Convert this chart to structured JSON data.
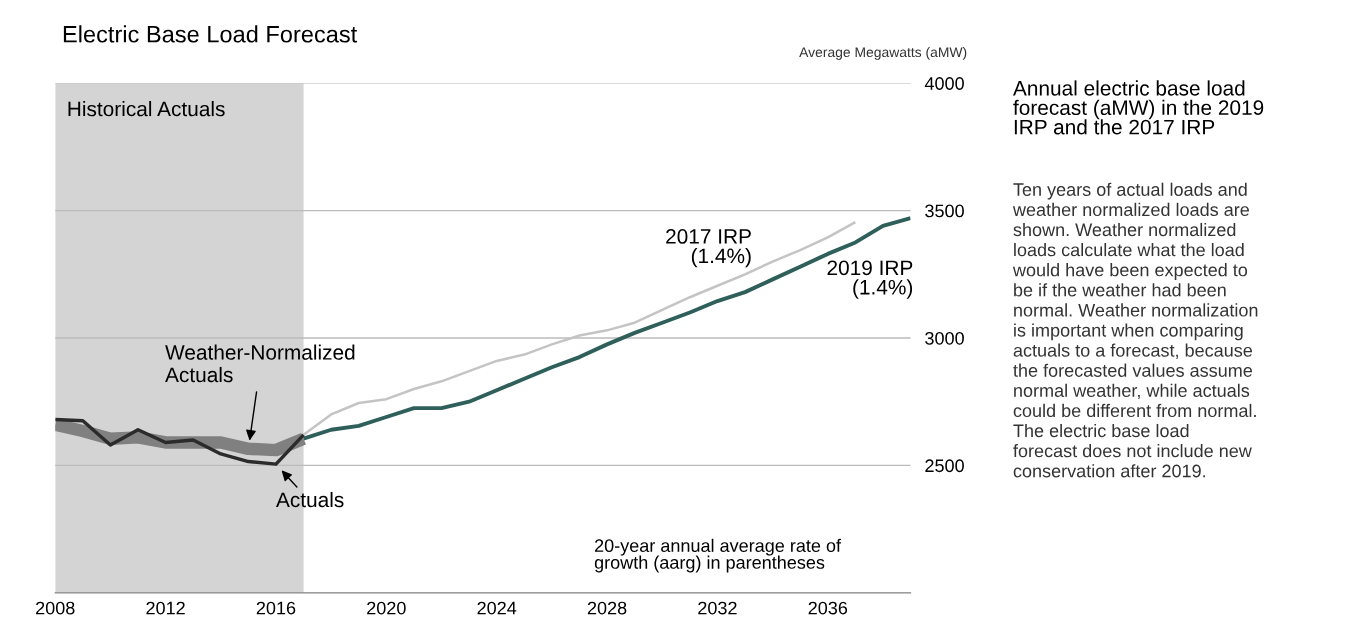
{
  "chart_data": {
    "type": "line",
    "title": "Electric Base Load Forecast",
    "subtitle": "Annual electric base load\nforecast (aMW) in the 2019\nIRP and the 2017 IRP",
    "ylabel": "Average Megawatts (aMW)",
    "annotations": [
      "Ten years of actual loads and\nweather normalized loads are\nshown. Weather normalized\nloads calculate what the load\nwould have been expected to\nbe if the weather had been\nnormal. Weather normalization\nis important when comparing\nactuals to a forecast, because\nthe forecasted values assume\nnormal weather, while actuals\ncould be different from normal.\nThe electric base load\nforecast does not include new\nconservation after 2019.",
      "20-year annual average rate of\ngrowth (aarg) in parentheses"
    ],
    "xlim": [
      2008,
      2039
    ],
    "xticks": [
      2008,
      2012,
      2016,
      2020,
      2024,
      2028,
      2032,
      2036
    ],
    "ylim": [
      2000,
      4000
    ],
    "yticks": [
      {
        "value": 2000,
        "label": null
      },
      2500,
      3000,
      3500,
      4000
    ],
    "grid": "y",
    "legend": false,
    "marker": "none",
    "line_style": "solid",
    "bands": [
      {
        "axis": "x",
        "from": 2008,
        "to": 2017,
        "label": "Historical Actuals",
        "color": "#d4d4d4"
      }
    ],
    "series": [
      {
        "name": "Weather-Normalized\nActuals",
        "color": "#808080",
        "x": [
          2008,
          2009,
          2010,
          2011,
          2012,
          2013,
          2014,
          2015,
          2016,
          2017
        ],
        "values": [
          2660,
          2635,
          2605,
          2610,
          2590,
          2590,
          2590,
          2565,
          2560,
          2605
        ]
      },
      {
        "name": "Actuals",
        "color": "#2b2b2b",
        "x": [
          2008,
          2009,
          2010,
          2011,
          2012,
          2013,
          2014,
          2015,
          2016,
          2017
        ],
        "values": [
          2680,
          2675,
          2580,
          2640,
          2590,
          2600,
          2545,
          2515,
          2505,
          2620
        ]
      },
      {
        "name": "2017 IRP\n(1.4%)",
        "color": "#c4c4c4",
        "x": [
          2017,
          2018,
          2019,
          2020,
          2021,
          2022,
          2023,
          2024,
          2025,
          2026,
          2027,
          2028,
          2029,
          2030,
          2031,
          2032,
          2033,
          2034,
          2035,
          2036,
          2037
        ],
        "values": [
          2620,
          2700,
          2745,
          2760,
          2800,
          2830,
          2870,
          2910,
          2935,
          2975,
          3010,
          3030,
          3060,
          3110,
          3160,
          3205,
          3250,
          3300,
          3345,
          3395,
          3455
        ]
      },
      {
        "name": "2019 IRP\n(1.4%)",
        "color": "#2f5f5a",
        "x": [
          2017,
          2018,
          2019,
          2020,
          2021,
          2022,
          2023,
          2024,
          2025,
          2026,
          2027,
          2028,
          2029,
          2030,
          2031,
          2032,
          2033,
          2034,
          2035,
          2036,
          2037,
          2038,
          2039
        ],
        "values": [
          2605,
          2640,
          2655,
          2690,
          2725,
          2725,
          2750,
          2795,
          2840,
          2885,
          2925,
          2975,
          3020,
          3060,
          3100,
          3145,
          3180,
          3230,
          3280,
          3330,
          3375,
          3440,
          3470
        ]
      }
    ]
  }
}
